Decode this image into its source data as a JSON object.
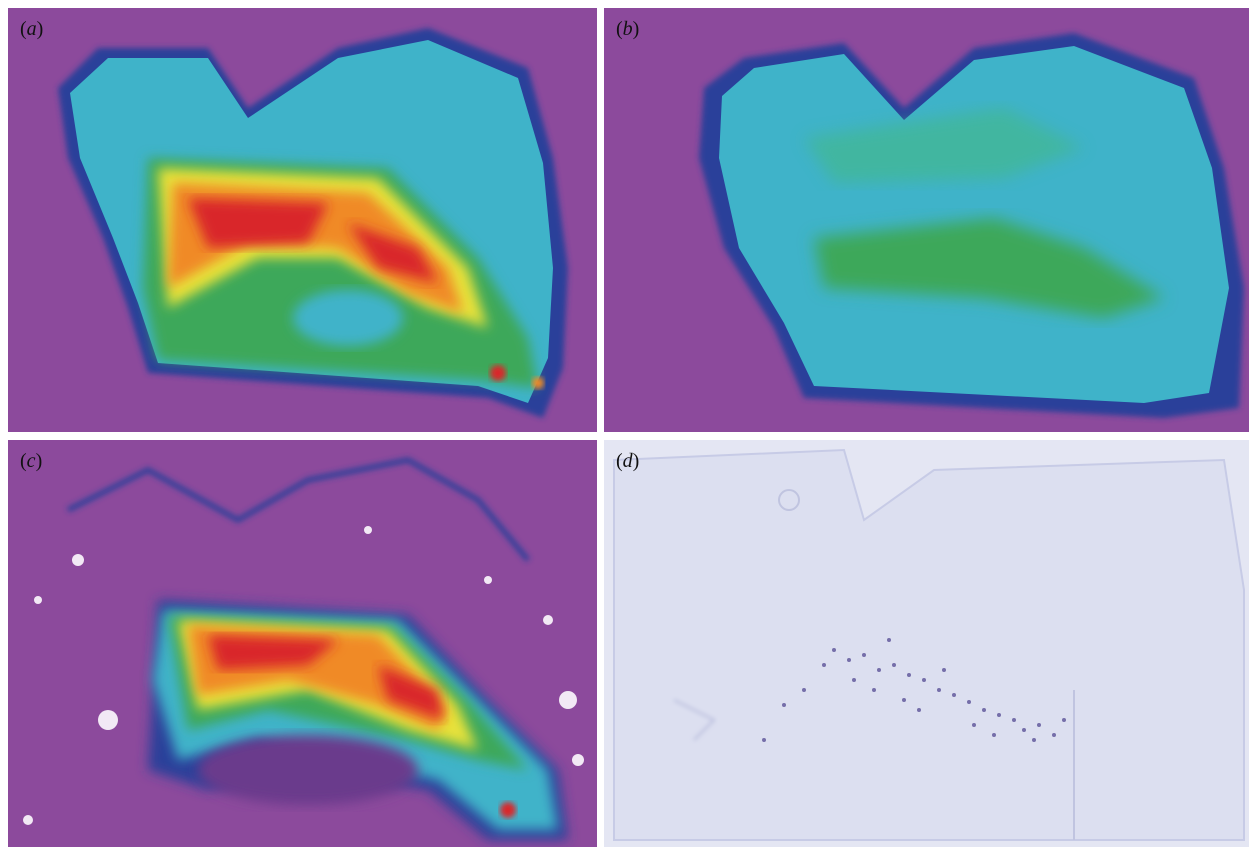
{
  "figure": {
    "panels": [
      {
        "id": "a",
        "label_open": "(",
        "label_letter": "a",
        "label_close": ")",
        "kind": "heatmap-hot"
      },
      {
        "id": "b",
        "label_open": "(",
        "label_letter": "b",
        "label_close": ")",
        "kind": "heatmap-mild"
      },
      {
        "id": "c",
        "label_open": "(",
        "label_letter": "c",
        "label_close": ")",
        "kind": "heatmap-hot-dark"
      },
      {
        "id": "d",
        "label_open": "(",
        "label_letter": "d",
        "label_close": ")",
        "kind": "histology-stain"
      }
    ],
    "colors": {
      "background_magenta": "#8c4a9c",
      "tissue_cyan": "#3fb3c9",
      "rim_blue": "#2c3f9a",
      "green": "#3ca85a",
      "yellow": "#e8e23a",
      "orange": "#f08a28",
      "red": "#d9252a",
      "stain_bg": "#dfe1f1",
      "stain_dots": "#4a3f8c"
    }
  }
}
